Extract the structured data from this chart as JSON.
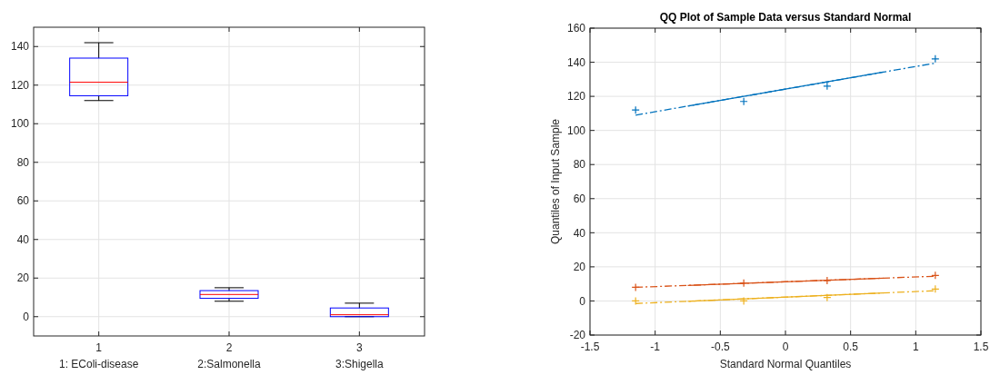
{
  "chart_data": [
    {
      "type": "box",
      "categories": [
        "1",
        "2",
        "3"
      ],
      "color": "#0000ff",
      "ylim": [
        -10,
        150
      ],
      "yticks": [
        0,
        20,
        40,
        60,
        80,
        100,
        120,
        140
      ],
      "grid": true,
      "boxes": [
        {
          "low": 112,
          "q1": 114.5,
          "median": 121.5,
          "q3": 134,
          "high": 142
        },
        {
          "low": 8,
          "q1": 9.5,
          "median": 11.5,
          "q3": 13.5,
          "high": 15
        },
        {
          "low": 0,
          "q1": 0,
          "median": 1,
          "q3": 4.5,
          "high": 7
        }
      ],
      "annotations": [
        "1: EColi-disease",
        "2:Salmonella",
        "3:Shigella"
      ]
    },
    {
      "type": "scatter",
      "title": "QQ Plot of Sample Data versus Standard Normal",
      "xlabel": "Standard Normal Quantiles",
      "ylabel": "Quantiles of Input Sample",
      "xlim": [
        -1.5,
        1.5
      ],
      "xticks": [
        -1.5,
        -1,
        -0.5,
        0,
        0.5,
        1,
        1.5
      ],
      "ylim": [
        -20,
        160
      ],
      "yticks": [
        -20,
        0,
        20,
        40,
        60,
        80,
        100,
        120,
        140,
        160
      ],
      "grid": true,
      "series": [
        {
          "type": "line",
          "color": "#0072bd",
          "line_style": "dashed",
          "x": [
            -1.15,
            1.15
          ],
          "values": [
            109,
            139.5
          ]
        },
        {
          "type": "line",
          "color": "#0072bd",
          "line_style": "solid",
          "x": [
            -0.75,
            0.75
          ],
          "values": [
            114.3,
            134.2
          ]
        },
        {
          "color": "#0072bd",
          "marker": "cross",
          "x": [
            -1.15,
            -0.32,
            0.32,
            1.15
          ],
          "values": [
            112,
            117,
            126,
            142
          ]
        },
        {
          "type": "line",
          "color": "#d95319",
          "line_style": "dashed",
          "x": [
            -1.15,
            1.15
          ],
          "values": [
            8,
            14.5
          ]
        },
        {
          "type": "line",
          "color": "#d95319",
          "line_style": "solid",
          "x": [
            -0.75,
            0.75
          ],
          "values": [
            9.1,
            13.4
          ]
        },
        {
          "color": "#d95319",
          "marker": "cross",
          "x": [
            -1.15,
            -0.32,
            0.32,
            1.15
          ],
          "values": [
            8,
            10.5,
            12,
            15
          ]
        },
        {
          "type": "line",
          "color": "#edb120",
          "line_style": "dashed",
          "x": [
            -1.15,
            1.15
          ],
          "values": [
            -1.5,
            6
          ]
        },
        {
          "type": "line",
          "color": "#edb120",
          "line_style": "solid",
          "x": [
            -0.75,
            0.75
          ],
          "values": [
            -0.2,
            4.7
          ]
        },
        {
          "color": "#edb120",
          "marker": "cross",
          "x": [
            -1.15,
            -0.32,
            0.32,
            1.15
          ],
          "values": [
            0,
            0,
            2,
            7
          ]
        }
      ]
    }
  ]
}
